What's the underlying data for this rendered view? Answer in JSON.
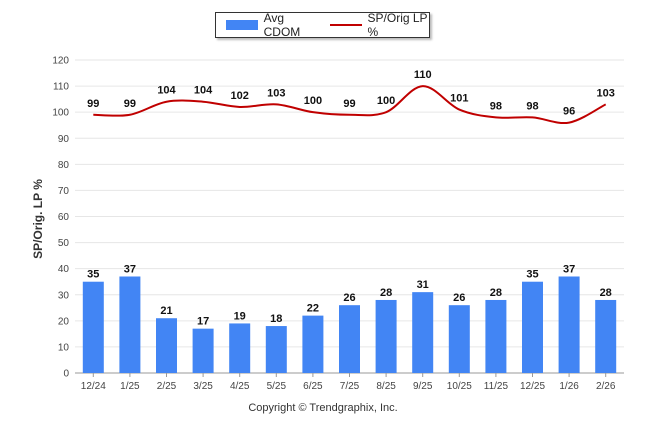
{
  "chart_data": {
    "type": "bar",
    "title": "",
    "categories": [
      "12/24",
      "1/25",
      "2/25",
      "3/25",
      "4/25",
      "5/25",
      "6/25",
      "7/25",
      "8/25",
      "9/25",
      "10/25",
      "11/25",
      "12/25",
      "1/26",
      "2/26"
    ],
    "series": [
      {
        "name": "Avg CDOM",
        "kind": "bar",
        "color": "#4285f4",
        "values": [
          35,
          37,
          21,
          17,
          19,
          18,
          22,
          26,
          28,
          31,
          26,
          28,
          35,
          37,
          28
        ]
      },
      {
        "name": "SP/Orig LP %",
        "kind": "line",
        "color": "#c00000",
        "values": [
          99,
          99,
          104,
          104,
          102,
          103,
          100,
          99,
          100,
          110,
          101,
          98,
          98,
          96,
          103
        ]
      }
    ],
    "xlabel": "",
    "ylabel": "SP/Orig. LP %",
    "ylim": [
      0,
      120
    ],
    "yticks": [
      0,
      10,
      20,
      30,
      40,
      50,
      60,
      70,
      80,
      90,
      100,
      110,
      120
    ],
    "legend": "top-center"
  },
  "footer": {
    "copyright": "Copyright © Trendgraphix, Inc."
  }
}
